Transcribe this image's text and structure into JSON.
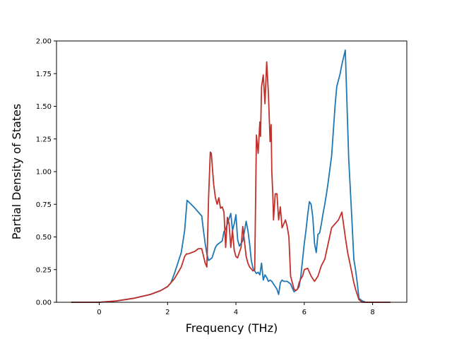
{
  "chart_data": {
    "type": "line",
    "title": "",
    "xlabel": "Frequency (THz)",
    "ylabel": "Partial Density of States",
    "xlim": [
      -1.25,
      9.0
    ],
    "ylim": [
      0.0,
      2.0
    ],
    "xticks": [
      0,
      2,
      4,
      6,
      8
    ],
    "xtick_labels": [
      "0",
      "2",
      "4",
      "6",
      "8"
    ],
    "yticks": [
      0.0,
      0.25,
      0.5,
      0.75,
      1.0,
      1.25,
      1.5,
      1.75,
      2.0
    ],
    "ytick_labels": [
      "0.00",
      "0.25",
      "0.50",
      "0.75",
      "1.00",
      "1.25",
      "1.50",
      "1.75",
      "2.00"
    ],
    "grid": false,
    "legend": "none",
    "series": [
      {
        "color": "#1f77b4",
        "x": [
          -0.8,
          0.0,
          0.5,
          1.0,
          1.5,
          1.8,
          2.0,
          2.1,
          2.2,
          2.3,
          2.4,
          2.5,
          2.57,
          2.65,
          2.8,
          2.9,
          3.0,
          3.05,
          3.1,
          3.15,
          3.2,
          3.3,
          3.4,
          3.45,
          3.5,
          3.6,
          3.65,
          3.7,
          3.75,
          3.8,
          3.85,
          3.9,
          3.95,
          4.0,
          4.05,
          4.1,
          4.15,
          4.2,
          4.3,
          4.35,
          4.4,
          4.45,
          4.5,
          4.55,
          4.6,
          4.65,
          4.7,
          4.75,
          4.8,
          4.85,
          4.9,
          4.95,
          5.0,
          5.05,
          5.1,
          5.15,
          5.2,
          5.25,
          5.3,
          5.35,
          5.4,
          5.45,
          5.5,
          5.6,
          5.7,
          5.75,
          5.8,
          5.85,
          5.9,
          6.0,
          6.05,
          6.1,
          6.15,
          6.2,
          6.25,
          6.3,
          6.35,
          6.4,
          6.45,
          6.5,
          6.55,
          6.6,
          6.65,
          6.7,
          6.8,
          6.9,
          6.95,
          7.0,
          7.05,
          7.1,
          7.2,
          7.27,
          7.3,
          7.35,
          7.4,
          7.45,
          7.5,
          7.55,
          7.6,
          7.7,
          7.8,
          7.85,
          8.0,
          8.5
        ],
        "y": [
          0.0,
          0.0,
          0.01,
          0.03,
          0.06,
          0.09,
          0.12,
          0.15,
          0.22,
          0.3,
          0.38,
          0.55,
          0.78,
          0.76,
          0.72,
          0.69,
          0.66,
          0.55,
          0.45,
          0.37,
          0.32,
          0.34,
          0.42,
          0.44,
          0.45,
          0.47,
          0.54,
          0.56,
          0.6,
          0.64,
          0.68,
          0.55,
          0.6,
          0.67,
          0.48,
          0.43,
          0.45,
          0.47,
          0.62,
          0.55,
          0.45,
          0.32,
          0.26,
          0.24,
          0.22,
          0.23,
          0.21,
          0.3,
          0.17,
          0.21,
          0.19,
          0.16,
          0.17,
          0.16,
          0.14,
          0.12,
          0.1,
          0.06,
          0.15,
          0.17,
          0.16,
          0.16,
          0.16,
          0.14,
          0.08,
          0.09,
          0.1,
          0.12,
          0.2,
          0.45,
          0.55,
          0.67,
          0.77,
          0.75,
          0.65,
          0.45,
          0.38,
          0.52,
          0.53,
          0.6,
          0.68,
          0.75,
          0.83,
          0.92,
          1.12,
          1.5,
          1.65,
          1.7,
          1.75,
          1.82,
          1.93,
          1.35,
          1.1,
          0.85,
          0.6,
          0.33,
          0.25,
          0.15,
          0.03,
          0.01,
          0.0,
          0.0,
          0.0,
          0.0
        ]
      },
      {
        "color": "#c1312b",
        "x": [
          -0.8,
          0.0,
          0.5,
          1.0,
          1.5,
          1.8,
          2.0,
          2.2,
          2.4,
          2.5,
          2.55,
          2.6,
          2.8,
          2.9,
          3.0,
          3.1,
          3.15,
          3.2,
          3.25,
          3.28,
          3.32,
          3.35,
          3.4,
          3.45,
          3.5,
          3.55,
          3.6,
          3.65,
          3.7,
          3.75,
          3.8,
          3.85,
          3.9,
          3.95,
          4.0,
          4.05,
          4.1,
          4.15,
          4.2,
          4.3,
          4.35,
          4.4,
          4.5,
          4.55,
          4.6,
          4.65,
          4.7,
          4.72,
          4.75,
          4.8,
          4.85,
          4.9,
          4.95,
          5.0,
          5.03,
          5.05,
          5.08,
          5.1,
          5.15,
          5.2,
          5.25,
          5.3,
          5.35,
          5.4,
          5.45,
          5.5,
          5.55,
          5.6,
          5.65,
          5.7,
          5.75,
          5.8,
          5.85,
          5.9,
          5.95,
          6.0,
          6.1,
          6.2,
          6.3,
          6.35,
          6.4,
          6.45,
          6.5,
          6.6,
          6.7,
          6.8,
          6.9,
          7.0,
          7.1,
          7.2,
          7.27,
          7.35,
          7.45,
          7.5,
          7.6,
          7.7,
          7.85,
          8.0,
          8.5
        ],
        "y": [
          0.0,
          0.0,
          0.01,
          0.03,
          0.06,
          0.09,
          0.12,
          0.18,
          0.27,
          0.35,
          0.37,
          0.37,
          0.39,
          0.41,
          0.41,
          0.3,
          0.27,
          0.8,
          1.15,
          1.14,
          1.0,
          0.9,
          0.8,
          0.75,
          0.8,
          0.72,
          0.73,
          0.69,
          0.42,
          0.65,
          0.6,
          0.42,
          0.55,
          0.4,
          0.35,
          0.34,
          0.38,
          0.42,
          0.58,
          0.35,
          0.3,
          0.27,
          0.24,
          0.25,
          1.28,
          1.14,
          1.38,
          1.27,
          1.65,
          1.74,
          1.52,
          1.84,
          1.6,
          1.23,
          1.36,
          1.0,
          0.82,
          0.63,
          0.83,
          0.83,
          0.63,
          0.73,
          0.57,
          0.6,
          0.63,
          0.58,
          0.5,
          0.2,
          0.15,
          0.1,
          0.09,
          0.1,
          0.15,
          0.18,
          0.2,
          0.25,
          0.26,
          0.2,
          0.16,
          0.18,
          0.2,
          0.24,
          0.28,
          0.33,
          0.45,
          0.57,
          0.6,
          0.63,
          0.69,
          0.5,
          0.38,
          0.28,
          0.15,
          0.1,
          0.02,
          0.0,
          0.0,
          0.0,
          0.0
        ]
      }
    ]
  }
}
